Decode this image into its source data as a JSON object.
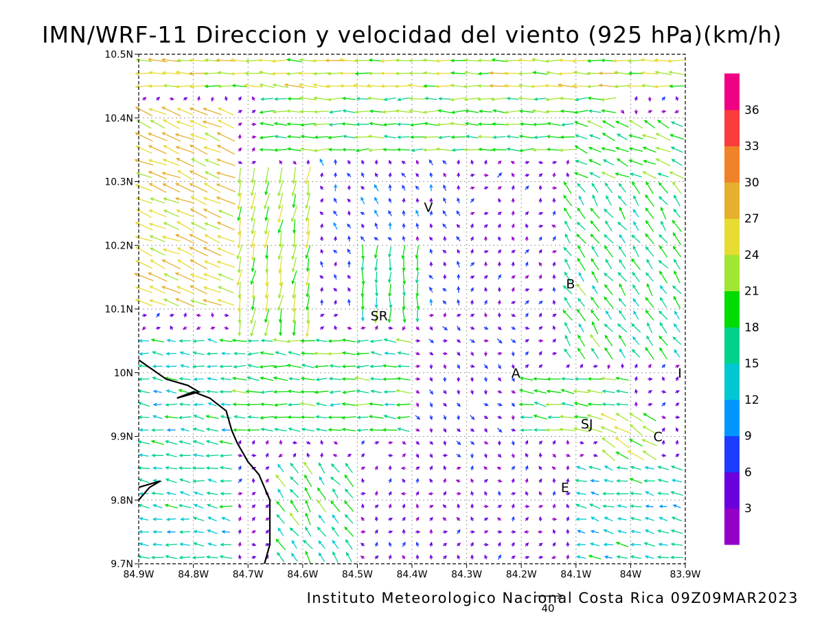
{
  "chart_data": {
    "type": "vector",
    "title": "IMN/WRF-11 Direccion y velocidad del viento (925 hPa)(km/h)",
    "footer": "Instituto Meteorologico Nacional Costa Rica 09Z09MAR2023",
    "x_ticks": [
      "84.9W",
      "84.8W",
      "84.7W",
      "84.6W",
      "84.5W",
      "84.4W",
      "84.3W",
      "84.2W",
      "84.1W",
      "84W",
      "83.9W"
    ],
    "y_ticks": [
      "10.5N",
      "10.4N",
      "10.3N",
      "10.2N",
      "10.1N",
      "10N",
      "9.9N",
      "9.8N",
      "9.7N"
    ],
    "xlim": [
      -84.9,
      -83.9
    ],
    "ylim": [
      9.7,
      10.5
    ],
    "grid": true,
    "colorbar": {
      "labels": [
        "3",
        "6",
        "9",
        "12",
        "15",
        "18",
        "21",
        "24",
        "27",
        "30",
        "33",
        "36"
      ],
      "colors": [
        "#9500c8",
        "#6a00dc",
        "#1c3cff",
        "#0096ff",
        "#00c8d2",
        "#00d28c",
        "#00dc00",
        "#a0e632",
        "#e6dc32",
        "#e6af2d",
        "#f08228",
        "#fa3c3c",
        "#f00082"
      ]
    },
    "reference_vector": {
      "label": "40"
    },
    "places": [
      {
        "label": "V",
        "lon": -84.37,
        "lat": 10.26
      },
      {
        "label": "B",
        "lon": -84.11,
        "lat": 10.14
      },
      {
        "label": "SR",
        "lon": -84.46,
        "lat": 10.09
      },
      {
        "label": "A",
        "lon": -84.21,
        "lat": 10.0
      },
      {
        "label": "SJ",
        "lon": -84.08,
        "lat": 9.92
      },
      {
        "label": "C",
        "lon": -83.95,
        "lat": 9.9
      },
      {
        "label": "E",
        "lon": -84.12,
        "lat": 9.82
      },
      {
        "label": "I",
        "lon": -83.91,
        "lat": 10.0
      }
    ],
    "coastline": [
      [
        -84.9,
        10.02
      ],
      [
        -84.85,
        9.99
      ],
      [
        -84.81,
        9.98
      ],
      [
        -84.79,
        9.97
      ],
      [
        -84.83,
        9.96
      ],
      [
        -84.8,
        9.97
      ],
      [
        -84.77,
        9.96
      ],
      [
        -84.74,
        9.94
      ],
      [
        -84.73,
        9.91
      ],
      [
        -84.72,
        9.89
      ],
      [
        -84.7,
        9.86
      ],
      [
        -84.68,
        9.84
      ],
      [
        -84.66,
        9.8
      ],
      [
        -84.66,
        9.77
      ],
      [
        -84.66,
        9.73
      ],
      [
        -84.67,
        9.7
      ]
    ],
    "coastline2": [
      [
        -84.9,
        9.8
      ],
      [
        -84.88,
        9.82
      ],
      [
        -84.86,
        9.83
      ],
      [
        -84.9,
        9.82
      ]
    ],
    "wind_zones": [
      {
        "lon": [
          -84.9,
          -83.9
        ],
        "lat": [
          10.44,
          10.5
        ],
        "u": -24,
        "v": 1
      },
      {
        "lon": [
          -84.68,
          -84.02
        ],
        "lat": [
          10.34,
          10.44
        ],
        "u": -20,
        "v": 0
      },
      {
        "lon": [
          -84.1,
          -83.9
        ],
        "lat": [
          10.3,
          10.4
        ],
        "u": -18,
        "v": 8
      },
      {
        "lon": [
          -84.9,
          -84.72
        ],
        "lat": [
          10.1,
          10.42
        ],
        "u": -24,
        "v": 10
      },
      {
        "lon": [
          -84.72,
          -84.58
        ],
        "lat": [
          10.05,
          10.32
        ],
        "u": -4,
        "v": -22
      },
      {
        "lon": [
          -84.58,
          -84.3
        ],
        "lat": [
          10.1,
          10.34
        ],
        "u": -2,
        "v": 6
      },
      {
        "lon": [
          -84.5,
          -84.38
        ],
        "lat": [
          10.08,
          10.2
        ],
        "u": 0,
        "v": -18
      },
      {
        "lon": [
          -84.3,
          -84.12
        ],
        "lat": [
          10.1,
          10.32
        ],
        "u": 2,
        "v": 3
      },
      {
        "lon": [
          -84.12,
          -83.9
        ],
        "lat": [
          10.02,
          10.3
        ],
        "u": -10,
        "v": 14
      },
      {
        "lon": [
          -84.9,
          -84.72
        ],
        "lat": [
          9.7,
          10.06
        ],
        "u": -15,
        "v": 2
      },
      {
        "lon": [
          -84.72,
          -84.4
        ],
        "lat": [
          9.9,
          10.06
        ],
        "u": -18,
        "v": 1
      },
      {
        "lon": [
          -84.4,
          -84.2
        ],
        "lat": [
          9.86,
          10.08
        ],
        "u": 3,
        "v": -3
      },
      {
        "lon": [
          -84.2,
          -84.0
        ],
        "lat": [
          9.9,
          10.0
        ],
        "u": -20,
        "v": 3
      },
      {
        "lon": [
          -84.05,
          -83.95
        ],
        "lat": [
          9.86,
          9.94
        ],
        "u": -20,
        "v": 12
      },
      {
        "lon": [
          -84.66,
          -84.5
        ],
        "lat": [
          9.7,
          9.86
        ],
        "u": -10,
        "v": 14
      },
      {
        "lon": [
          -84.5,
          -84.1
        ],
        "lat": [
          9.7,
          9.86
        ],
        "u": 1,
        "v": 3
      },
      {
        "lon": [
          -84.1,
          -83.9
        ],
        "lat": [
          9.7,
          9.86
        ],
        "u": -14,
        "v": 3
      }
    ]
  }
}
